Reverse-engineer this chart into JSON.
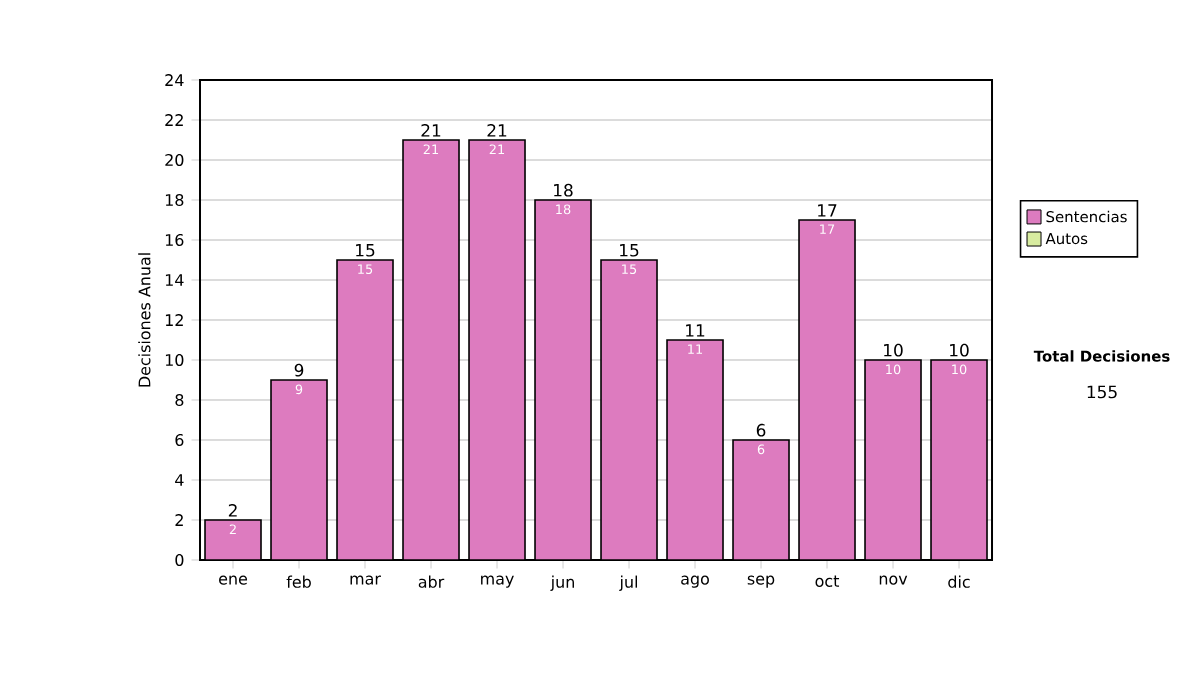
{
  "chart_data": {
    "type": "bar",
    "ylabel": "Decisiones Anual",
    "categories": [
      "ene",
      "feb",
      "mar",
      "abr",
      "may",
      "jun",
      "jul",
      "ago",
      "sep",
      "oct",
      "nov",
      "dic"
    ],
    "series": [
      {
        "name": "Sentencias",
        "color": "#dd7bbf",
        "values": [
          2,
          9,
          15,
          21,
          21,
          18,
          15,
          11,
          6,
          17,
          10,
          10
        ]
      },
      {
        "name": "Autos",
        "color": "#d8eca0",
        "values": [
          null,
          null,
          null,
          null,
          null,
          null,
          null,
          null,
          null,
          null,
          null,
          null
        ]
      }
    ],
    "data_labels": true,
    "totals": [
      "2",
      "9",
      "15",
      "21",
      "21",
      "18",
      "15",
      "11",
      "6",
      "17",
      "10",
      "10"
    ],
    "ylim": [
      0,
      24
    ],
    "yticks": [
      0,
      2,
      4,
      6,
      8,
      10,
      12,
      14,
      16,
      18,
      20,
      22,
      24
    ],
    "grid": "y",
    "legend": "right",
    "annotations": [
      "Total Decisiones",
      "155"
    ]
  }
}
